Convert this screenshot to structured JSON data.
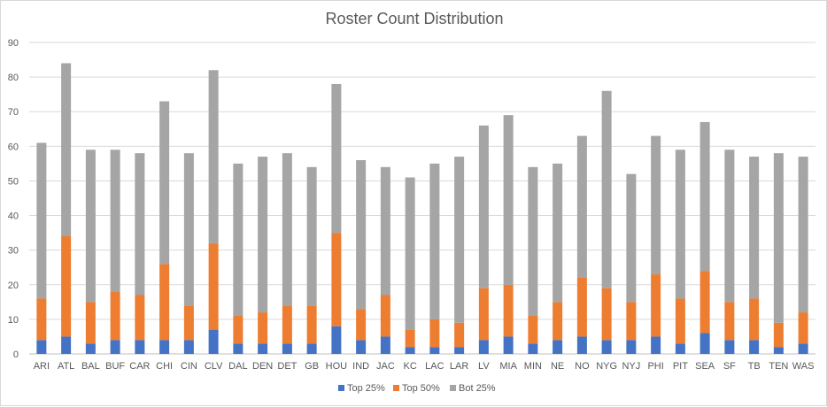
{
  "chart_data": {
    "type": "bar",
    "stacked": true,
    "title": "Roster Count Distribution",
    "xlabel": "",
    "ylabel": "",
    "ylim": [
      0,
      90
    ],
    "yticks": [
      0,
      10,
      20,
      30,
      40,
      50,
      60,
      70,
      80,
      90
    ],
    "grid": true,
    "legend_position": "bottom",
    "categories": [
      "ARI",
      "ATL",
      "BAL",
      "BUF",
      "CAR",
      "CHI",
      "CIN",
      "CLV",
      "DAL",
      "DEN",
      "DET",
      "GB",
      "HOU",
      "IND",
      "JAC",
      "KC",
      "LAC",
      "LAR",
      "LV",
      "MIA",
      "MIN",
      "NE",
      "NO",
      "NYG",
      "NYJ",
      "PHI",
      "PIT",
      "SEA",
      "SF",
      "TB",
      "TEN",
      "WAS"
    ],
    "series": [
      {
        "name": "Top 25%",
        "color": "#4472c4",
        "values": [
          4,
          5,
          3,
          4,
          4,
          4,
          4,
          7,
          3,
          3,
          3,
          3,
          8,
          4,
          5,
          2,
          2,
          2,
          4,
          5,
          3,
          4,
          5,
          4,
          4,
          5,
          3,
          6,
          4,
          4,
          2,
          3
        ]
      },
      {
        "name": "Top 50%",
        "color": "#ed7d31",
        "values": [
          12,
          29,
          12,
          14,
          13,
          22,
          10,
          25,
          8,
          9,
          11,
          11,
          27,
          9,
          12,
          5,
          8,
          7,
          15,
          15,
          8,
          11,
          17,
          15,
          11,
          18,
          13,
          18,
          11,
          12,
          7,
          9
        ]
      },
      {
        "name": "Bot 25%",
        "color": "#a5a5a5",
        "values": [
          45,
          50,
          44,
          41,
          41,
          47,
          44,
          50,
          44,
          45,
          44,
          40,
          43,
          43,
          37,
          44,
          45,
          48,
          47,
          49,
          43,
          40,
          41,
          57,
          37,
          40,
          43,
          43,
          44,
          41,
          49,
          45
        ]
      }
    ]
  }
}
